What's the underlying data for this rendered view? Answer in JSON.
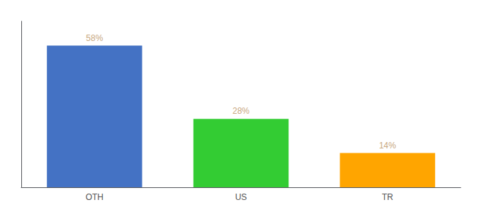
{
  "chart_data": {
    "type": "bar",
    "categories": [
      "OTH",
      "US",
      "TR"
    ],
    "values": [
      58,
      28,
      14
    ],
    "value_labels": [
      "58%",
      "28%",
      "14%"
    ],
    "colors": [
      "#4472C4",
      "#33CC33",
      "#FFA500"
    ],
    "ylim": [
      0,
      68
    ],
    "yticks": [],
    "tick_labels": "x",
    "data_labels": true,
    "grid": false
  }
}
